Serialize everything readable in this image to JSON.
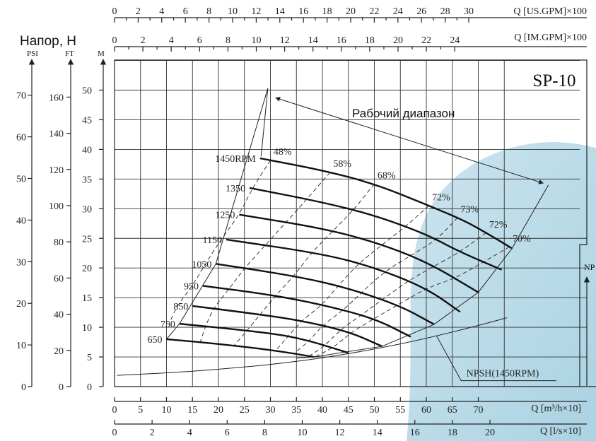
{
  "chart_data": {
    "type": "line",
    "model": "SP-10",
    "head_label": "Напор, Н",
    "range_label": "Рабочий диапазон",
    "units": {
      "psi": "PSI",
      "ft": "FT",
      "m": "M"
    },
    "top_axes": [
      {
        "label": "Q [US.GPM]×100",
        "ticks": [
          "0",
          "2",
          "4",
          "6",
          "8",
          "10",
          "12",
          "14",
          "16",
          "18",
          "20",
          "22",
          "24",
          "26",
          "28",
          "30"
        ]
      },
      {
        "label": "Q [IM.GPM]×100",
        "ticks": [
          "0",
          "2",
          "4",
          "6",
          "8",
          "10",
          "12",
          "14",
          "16",
          "18",
          "20",
          "22",
          "24"
        ]
      }
    ],
    "bottom_axes": [
      {
        "label": "Q [m³/h×10]",
        "ticks": [
          "0",
          "5",
          "10",
          "15",
          "20",
          "25",
          "30",
          "35",
          "40",
          "45",
          "50",
          "55",
          "60",
          "65",
          "70"
        ]
      },
      {
        "label": "Q [l/s×10]",
        "ticks": [
          "0",
          "2",
          "4",
          "6",
          "8",
          "10",
          "12",
          "14",
          "16",
          "18",
          "20"
        ]
      }
    ],
    "left_axes": {
      "psi": [
        "0",
        "10",
        "20",
        "30",
        "40",
        "50",
        "60",
        "70"
      ],
      "ft": [
        "0",
        "20",
        "40",
        "60",
        "80",
        "100",
        "120",
        "140",
        "160"
      ],
      "m": [
        "0",
        "5",
        "10",
        "15",
        "20",
        "25",
        "30",
        "35",
        "40",
        "45",
        "50"
      ]
    },
    "right_axis_label": "NP",
    "xlim": [
      0,
      80
    ],
    "ylim": [
      0,
      50
    ],
    "series": [
      {
        "name": "1450RPM",
        "x": [
          28,
          40,
          50,
          60,
          67,
          71,
          76.5
        ],
        "y": [
          38.5,
          36.5,
          34.2,
          30.7,
          28.1,
          26.2,
          23.3
        ]
      },
      {
        "name": "1350",
        "x": [
          26,
          40,
          50,
          60,
          66,
          74.5
        ],
        "y": [
          33.5,
          31.1,
          28.9,
          25.7,
          22.9,
          19.7
        ]
      },
      {
        "name": "1250",
        "x": [
          24,
          40,
          50,
          60,
          70
        ],
        "y": [
          29,
          26.7,
          24.4,
          21.1,
          15.9
        ]
      },
      {
        "name": "1150",
        "x": [
          21.5,
          40,
          50,
          60,
          66.5
        ],
        "y": [
          24.8,
          22.4,
          20.1,
          16.6,
          12.6
        ]
      },
      {
        "name": "1050",
        "x": [
          19.5,
          35,
          45,
          55,
          61.5
        ],
        "y": [
          20.7,
          18.6,
          16.6,
          13.6,
          10.5
        ]
      },
      {
        "name": "950",
        "x": [
          17,
          30,
          40,
          50,
          57
        ],
        "y": [
          17,
          15.5,
          13.8,
          11.5,
          8.4
        ]
      },
      {
        "name": "850",
        "x": [
          15,
          25,
          35,
          45,
          51.5
        ],
        "y": [
          13.6,
          12.5,
          11.3,
          9.3,
          6.8
        ]
      },
      {
        "name": "750",
        "x": [
          12.5,
          25,
          35,
          45
        ],
        "y": [
          10.6,
          9.5,
          8.4,
          5.7
        ]
      },
      {
        "name": "650",
        "x": [
          10,
          20,
          30,
          38.5
        ],
        "y": [
          8,
          7.2,
          6.2,
          5
        ]
      }
    ],
    "npsh": {
      "name": "NPSH(1450RPM)",
      "x": [
        0.5,
        10,
        20,
        30,
        40,
        50,
        60,
        70,
        75.5
      ],
      "y": [
        1.9,
        2.3,
        2.9,
        3.7,
        4.8,
        6.3,
        8.1,
        10.3,
        11.6
      ]
    },
    "efficiency": [
      {
        "label": "48%",
        "x": [
          30,
          26.5,
          24,
          20.5,
          17.5,
          15,
          12,
          10.5
        ]
      },
      {
        "label": "58%",
        "x": [
          41.5,
          37,
          33,
          29,
          25,
          22,
          19,
          17.5,
          16.5
        ]
      },
      {
        "label": "68%",
        "x": [
          50,
          46,
          42,
          38,
          34.5,
          31,
          28,
          25.5,
          23
        ]
      },
      {
        "label": "72%",
        "x": [
          60.5,
          56,
          51.5,
          47,
          43,
          40,
          36,
          33.5,
          31
        ]
      },
      {
        "label": "73%",
        "x": [
          66,
          62,
          57,
          52,
          47.5,
          44,
          40,
          37.5,
          34.5
        ]
      },
      {
        "label": "72%",
        "x": [
          71.5,
          66.5,
          61.5,
          56.5,
          51.5,
          47.5,
          43.5,
          40.5,
          37.5
        ]
      },
      {
        "label": "70%",
        "x": [
          76,
          71,
          65.5,
          60,
          54.5,
          50,
          45.5,
          42,
          38.5
        ]
      }
    ]
  }
}
